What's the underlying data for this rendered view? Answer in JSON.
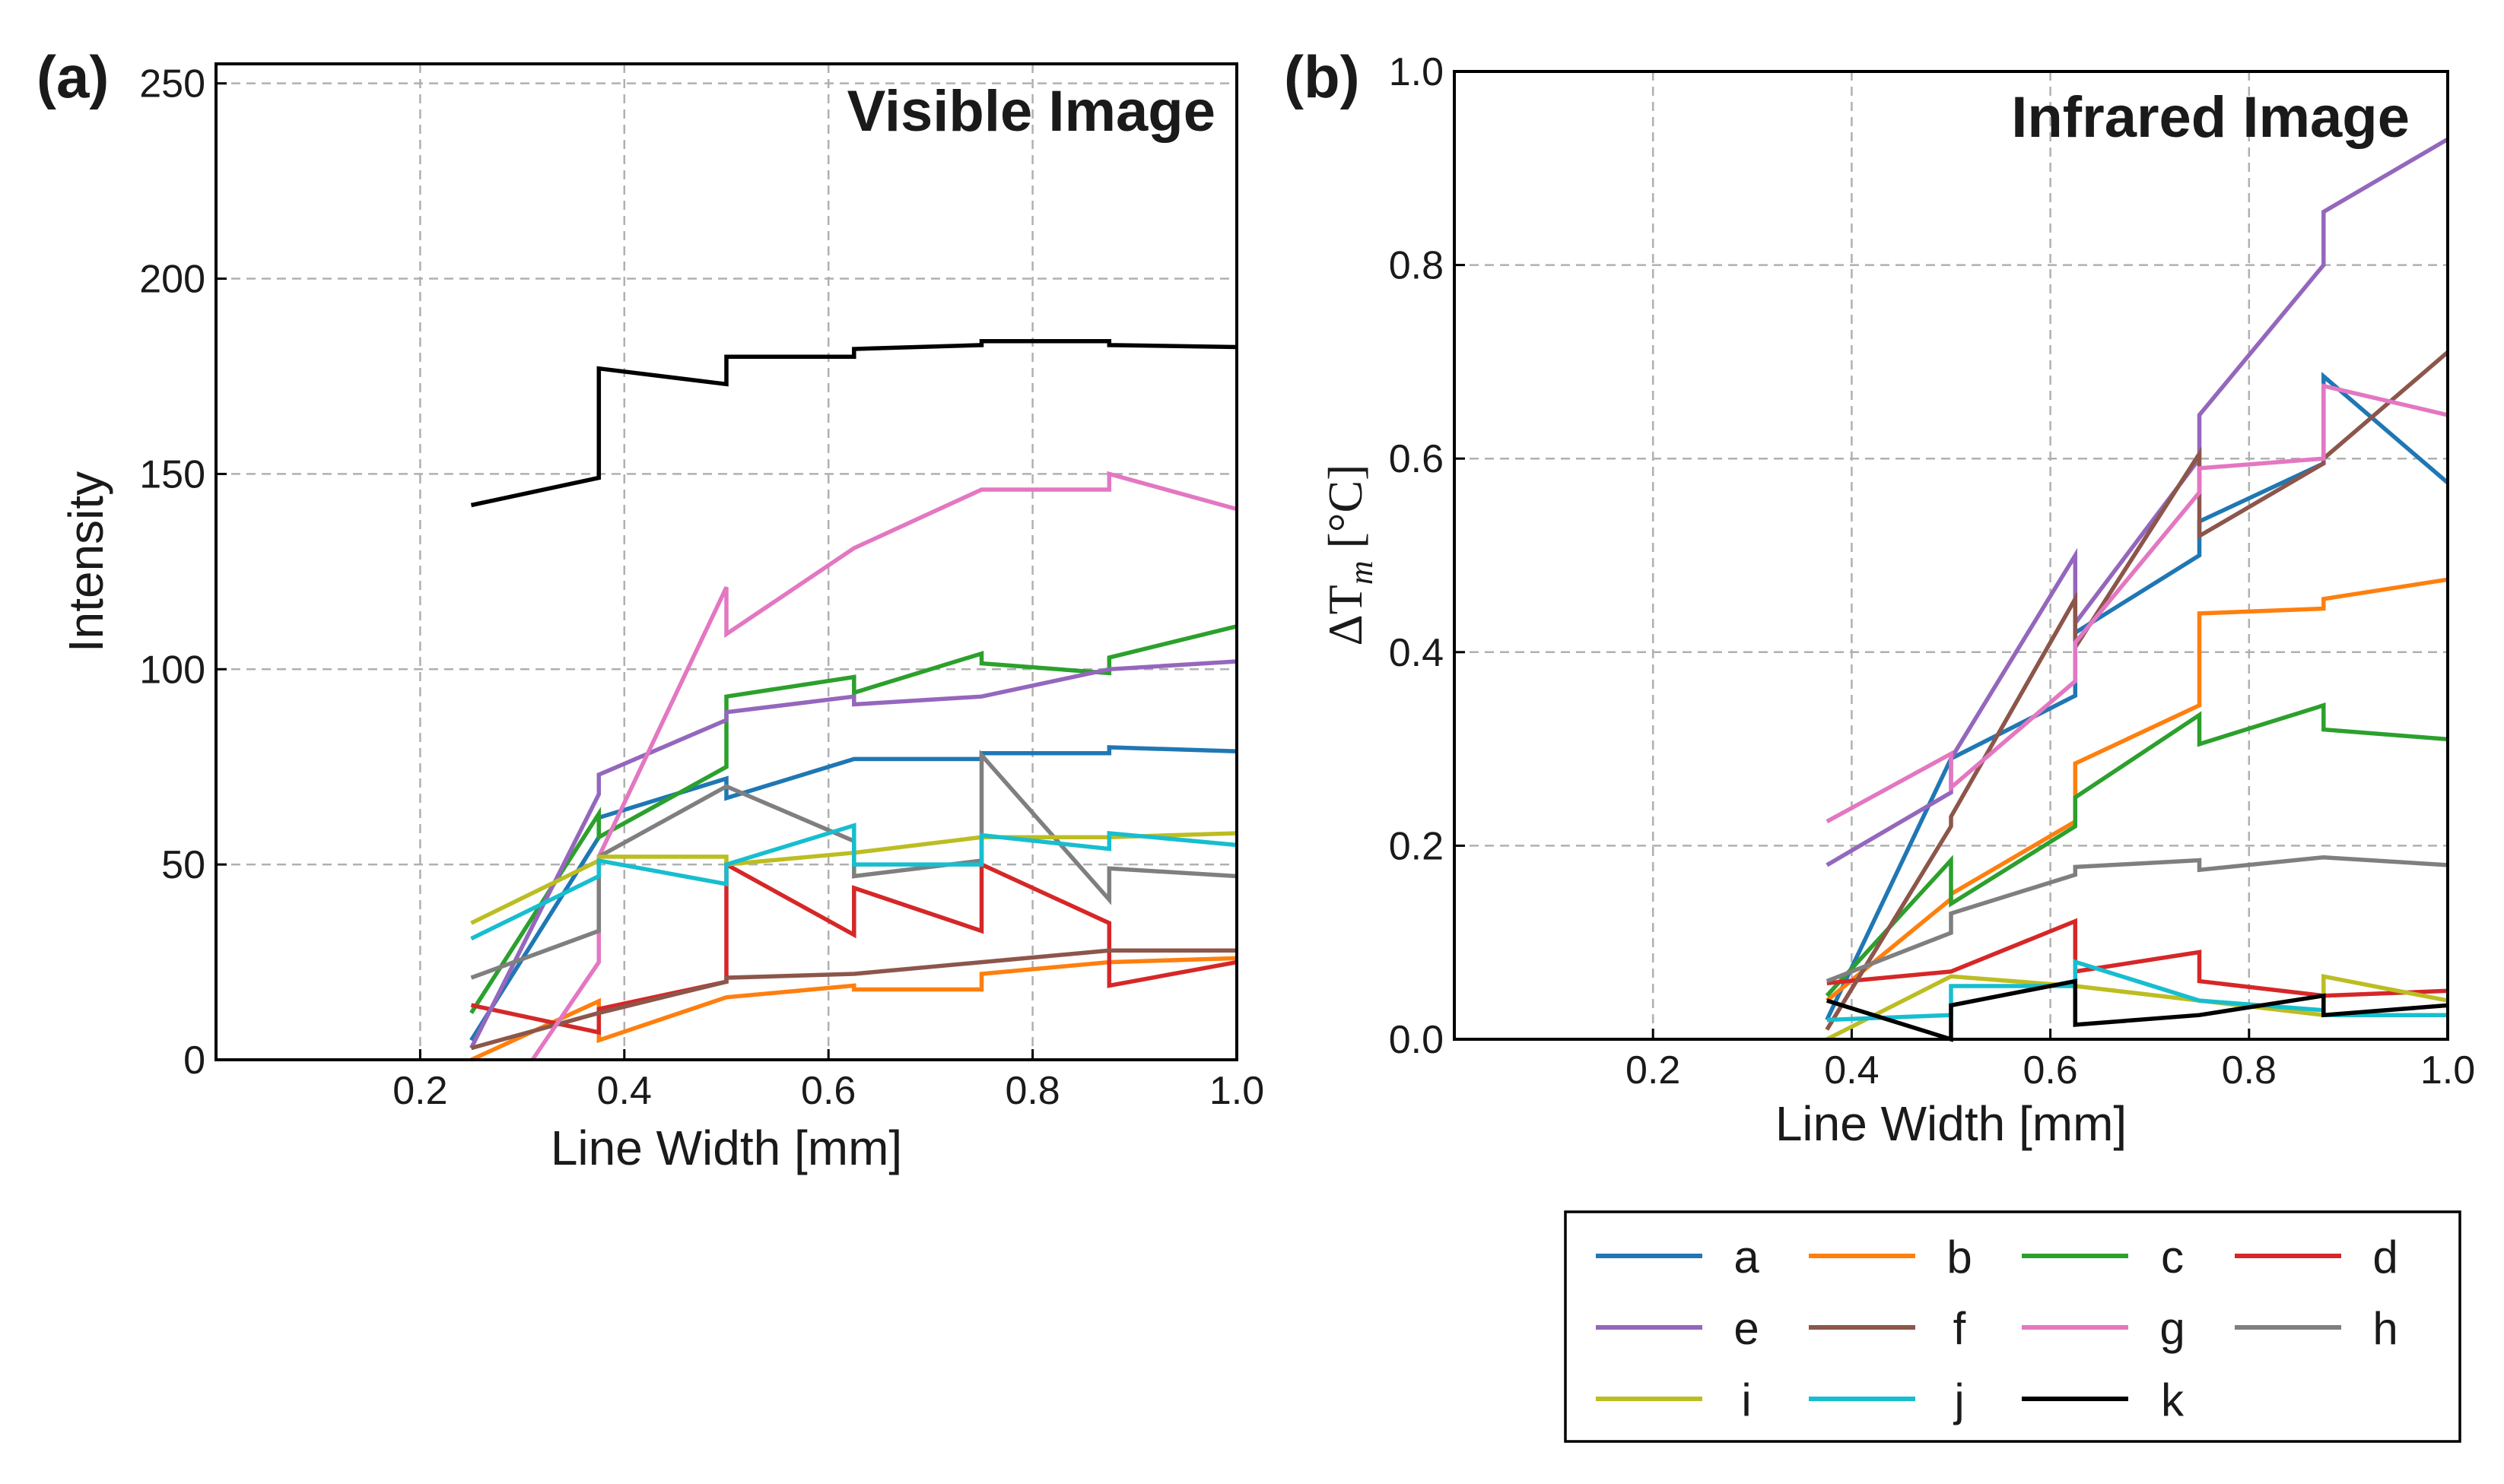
{
  "legend": [
    "a",
    "b",
    "c",
    "d",
    "e",
    "f",
    "g",
    "h",
    "i",
    "j",
    "k"
  ],
  "chart_data": [
    {
      "type": "line",
      "panel_label": "(a)",
      "title": "Visible Image",
      "xlabel": "Line Width [mm]",
      "ylabel": "Intensity",
      "xlim": [
        0.0,
        1.0
      ],
      "ylim": [
        0,
        255
      ],
      "xticks": [
        0.2,
        0.4,
        0.6,
        0.8,
        1.0
      ],
      "xtick_labels": [
        "0.2",
        "0.4",
        "0.6",
        "0.8",
        "1.0"
      ],
      "yticks": [
        0,
        50,
        100,
        150,
        200,
        250
      ],
      "ytick_labels": [
        "0",
        "50",
        "100",
        "150",
        "200",
        "250"
      ],
      "grid": true,
      "series": [
        {
          "name": "a",
          "color": "#1f77b4",
          "points": [
            [
              0.25,
              5
            ],
            [
              0.375,
              57
            ],
            [
              0.375,
              62
            ],
            [
              0.5,
              72
            ],
            [
              0.5,
              67
            ],
            [
              0.625,
              77
            ],
            [
              0.75,
              77
            ],
            [
              0.75,
              78.5
            ],
            [
              0.875,
              78.5
            ],
            [
              0.875,
              80
            ],
            [
              1.0,
              79
            ]
          ]
        },
        {
          "name": "b",
          "color": "#ff7f0e",
          "points": [
            [
              0.25,
              0
            ],
            [
              0.375,
              15
            ],
            [
              0.375,
              5
            ],
            [
              0.5,
              16
            ],
            [
              0.625,
              19
            ],
            [
              0.625,
              18
            ],
            [
              0.75,
              18
            ],
            [
              0.75,
              22
            ],
            [
              0.875,
              25
            ],
            [
              1.0,
              26
            ]
          ]
        },
        {
          "name": "c",
          "color": "#2ca02c",
          "points": [
            [
              0.25,
              12
            ],
            [
              0.375,
              63
            ],
            [
              0.375,
              57
            ],
            [
              0.5,
              75
            ],
            [
              0.5,
              93
            ],
            [
              0.625,
              98
            ],
            [
              0.625,
              94
            ],
            [
              0.75,
              104
            ],
            [
              0.75,
              101.5
            ],
            [
              0.875,
              99
            ],
            [
              0.875,
              103
            ],
            [
              1.0,
              111
            ]
          ]
        },
        {
          "name": "d",
          "color": "#d62728",
          "points": [
            [
              0.25,
              14
            ],
            [
              0.375,
              7
            ],
            [
              0.375,
              13
            ],
            [
              0.5,
              20
            ],
            [
              0.5,
              50
            ],
            [
              0.625,
              32
            ],
            [
              0.625,
              44
            ],
            [
              0.75,
              33
            ],
            [
              0.75,
              50
            ],
            [
              0.875,
              35
            ],
            [
              0.875,
              19
            ],
            [
              1.0,
              25
            ]
          ]
        },
        {
          "name": "e",
          "color": "#9467bd",
          "points": [
            [
              0.25,
              3
            ],
            [
              0.375,
              68
            ],
            [
              0.375,
              73
            ],
            [
              0.5,
              87
            ],
            [
              0.5,
              89
            ],
            [
              0.625,
              93
            ],
            [
              0.625,
              91
            ],
            [
              0.75,
              93
            ],
            [
              0.875,
              100
            ],
            [
              1.0,
              102
            ]
          ]
        },
        {
          "name": "f",
          "color": "#8c564b",
          "points": [
            [
              0.25,
              3
            ],
            [
              0.375,
              12
            ],
            [
              0.5,
              20
            ],
            [
              0.5,
              21
            ],
            [
              0.625,
              22
            ],
            [
              0.75,
              25
            ],
            [
              0.75,
              25
            ],
            [
              0.875,
              28
            ],
            [
              1.0,
              28
            ]
          ]
        },
        {
          "name": "g",
          "color": "#e377c2",
          "points": [
            [
              0.31,
              0
            ],
            [
              0.375,
              25
            ],
            [
              0.375,
              52
            ],
            [
              0.5,
              121
            ],
            [
              0.5,
              109
            ],
            [
              0.625,
              131
            ],
            [
              0.75,
              146
            ],
            [
              0.875,
              146
            ],
            [
              0.875,
              150
            ],
            [
              1.0,
              141
            ]
          ]
        },
        {
          "name": "h",
          "color": "#7f7f7f",
          "points": [
            [
              0.25,
              21
            ],
            [
              0.375,
              33
            ],
            [
              0.375,
              52
            ],
            [
              0.5,
              70
            ],
            [
              0.625,
              56
            ],
            [
              0.625,
              47
            ],
            [
              0.75,
              51
            ],
            [
              0.75,
              78
            ],
            [
              0.875,
              41
            ],
            [
              0.875,
              49
            ],
            [
              1.0,
              47
            ]
          ]
        },
        {
          "name": "i",
          "color": "#bcbd22",
          "points": [
            [
              0.25,
              35
            ],
            [
              0.375,
              51
            ],
            [
              0.375,
              52
            ],
            [
              0.5,
              52
            ],
            [
              0.5,
              50
            ],
            [
              0.625,
              53
            ],
            [
              0.75,
              57
            ],
            [
              0.875,
              57
            ],
            [
              1.0,
              58
            ]
          ]
        },
        {
          "name": "j",
          "color": "#17becf",
          "points": [
            [
              0.25,
              31
            ],
            [
              0.375,
              47
            ],
            [
              0.375,
              51
            ],
            [
              0.5,
              45
            ],
            [
              0.5,
              50
            ],
            [
              0.625,
              60
            ],
            [
              0.625,
              50
            ],
            [
              0.75,
              50
            ],
            [
              0.75,
              57.5
            ],
            [
              0.875,
              54
            ],
            [
              0.875,
              58
            ],
            [
              1.0,
              55
            ]
          ]
        },
        {
          "name": "k",
          "color": "#000000",
          "points": [
            [
              0.25,
              142
            ],
            [
              0.375,
              149
            ],
            [
              0.375,
              177
            ],
            [
              0.5,
              173
            ],
            [
              0.5,
              180
            ],
            [
              0.625,
              180
            ],
            [
              0.625,
              182
            ],
            [
              0.75,
              183
            ],
            [
              0.75,
              184
            ],
            [
              0.875,
              184
            ],
            [
              0.875,
              183
            ],
            [
              1.0,
              182.5
            ]
          ]
        }
      ]
    },
    {
      "type": "line",
      "panel_label": "(b)",
      "title": "Infrared Image",
      "xlabel": "Line Width [mm]",
      "ylabel_symbol": "ΔT",
      "ylabel_subscript": "m",
      "ylabel_unit": " [°C]",
      "xlim": [
        0.0,
        1.0
      ],
      "ylim": [
        0.0,
        1.0
      ],
      "xticks": [
        0.2,
        0.4,
        0.6,
        0.8,
        1.0
      ],
      "xtick_labels": [
        "0.2",
        "0.4",
        "0.6",
        "0.8",
        "1.0"
      ],
      "yticks": [
        0.0,
        0.2,
        0.4,
        0.6,
        0.8,
        1.0
      ],
      "ytick_labels": [
        "0.0",
        "0.2",
        "0.4",
        "0.6",
        "0.8",
        "1.0"
      ],
      "grid": true,
      "series": [
        {
          "name": "a",
          "color": "#1f77b4",
          "points": [
            [
              0.375,
              0.02
            ],
            [
              0.5,
              0.29
            ],
            [
              0.5,
              0.29
            ],
            [
              0.625,
              0.355
            ],
            [
              0.625,
              0.42
            ],
            [
              0.75,
              0.5
            ],
            [
              0.75,
              0.535
            ],
            [
              0.875,
              0.595
            ],
            [
              0.875,
              0.685
            ],
            [
              1.0,
              0.575
            ]
          ]
        },
        {
          "name": "b",
          "color": "#ff7f0e",
          "points": [
            [
              0.375,
              0.04
            ],
            [
              0.5,
              0.145
            ],
            [
              0.5,
              0.15
            ],
            [
              0.625,
              0.225
            ],
            [
              0.625,
              0.285
            ],
            [
              0.75,
              0.345
            ],
            [
              0.75,
              0.44
            ],
            [
              0.875,
              0.445
            ],
            [
              0.875,
              0.455
            ],
            [
              1.0,
              0.475
            ]
          ]
        },
        {
          "name": "c",
          "color": "#2ca02c",
          "points": [
            [
              0.375,
              0.045
            ],
            [
              0.5,
              0.185
            ],
            [
              0.5,
              0.14
            ],
            [
              0.625,
              0.22
            ],
            [
              0.625,
              0.25
            ],
            [
              0.75,
              0.335
            ],
            [
              0.75,
              0.305
            ],
            [
              0.875,
              0.345
            ],
            [
              0.875,
              0.32
            ],
            [
              1.0,
              0.31
            ]
          ]
        },
        {
          "name": "d",
          "color": "#d62728",
          "points": [
            [
              0.375,
              0.058
            ],
            [
              0.5,
              0.07
            ],
            [
              0.5,
              0.07
            ],
            [
              0.625,
              0.122
            ],
            [
              0.625,
              0.07
            ],
            [
              0.75,
              0.09
            ],
            [
              0.75,
              0.06
            ],
            [
              0.875,
              0.045
            ],
            [
              1.0,
              0.05
            ]
          ]
        },
        {
          "name": "e",
          "color": "#9467bd",
          "points": [
            [
              0.375,
              0.18
            ],
            [
              0.5,
              0.255
            ],
            [
              0.5,
              0.29
            ],
            [
              0.625,
              0.5
            ],
            [
              0.625,
              0.43
            ],
            [
              0.75,
              0.6
            ],
            [
              0.75,
              0.645
            ],
            [
              0.875,
              0.8
            ],
            [
              0.875,
              0.855
            ],
            [
              1.0,
              0.93
            ]
          ]
        },
        {
          "name": "f",
          "color": "#8c564b",
          "points": [
            [
              0.375,
              0.01
            ],
            [
              0.5,
              0.22
            ],
            [
              0.5,
              0.23
            ],
            [
              0.625,
              0.455
            ],
            [
              0.625,
              0.405
            ],
            [
              0.75,
              0.605
            ],
            [
              0.75,
              0.52
            ],
            [
              0.875,
              0.595
            ],
            [
              0.875,
              0.6
            ],
            [
              1.0,
              0.71
            ]
          ]
        },
        {
          "name": "g",
          "color": "#e377c2",
          "points": [
            [
              0.375,
              0.225
            ],
            [
              0.5,
              0.295
            ],
            [
              0.5,
              0.26
            ],
            [
              0.625,
              0.37
            ],
            [
              0.625,
              0.41
            ],
            [
              0.75,
              0.565
            ],
            [
              0.75,
              0.59
            ],
            [
              0.875,
              0.6
            ],
            [
              0.875,
              0.675
            ],
            [
              1.0,
              0.645
            ]
          ]
        },
        {
          "name": "h",
          "color": "#7f7f7f",
          "points": [
            [
              0.375,
              0.06
            ],
            [
              0.5,
              0.11
            ],
            [
              0.5,
              0.13
            ],
            [
              0.625,
              0.17
            ],
            [
              0.625,
              0.178
            ],
            [
              0.75,
              0.185
            ],
            [
              0.75,
              0.175
            ],
            [
              0.875,
              0.188
            ],
            [
              1.0,
              0.18
            ]
          ]
        },
        {
          "name": "i",
          "color": "#bcbd22",
          "points": [
            [
              0.375,
              0.0
            ],
            [
              0.5,
              0.065
            ],
            [
              0.625,
              0.055
            ],
            [
              0.75,
              0.04
            ],
            [
              0.875,
              0.025
            ],
            [
              0.875,
              0.065
            ],
            [
              1.0,
              0.04
            ]
          ]
        },
        {
          "name": "j",
          "color": "#17becf",
          "points": [
            [
              0.375,
              0.02
            ],
            [
              0.5,
              0.025
            ],
            [
              0.5,
              0.055
            ],
            [
              0.625,
              0.055
            ],
            [
              0.625,
              0.08
            ],
            [
              0.75,
              0.04
            ],
            [
              0.875,
              0.03
            ],
            [
              0.875,
              0.025
            ],
            [
              1.0,
              0.025
            ]
          ]
        },
        {
          "name": "k",
          "color": "#000000",
          "points": [
            [
              0.375,
              0.04
            ],
            [
              0.5,
              0.0
            ],
            [
              0.5,
              0.035
            ],
            [
              0.625,
              0.06
            ],
            [
              0.625,
              0.015
            ],
            [
              0.75,
              0.025
            ],
            [
              0.875,
              0.045
            ],
            [
              0.875,
              0.025
            ],
            [
              1.0,
              0.035
            ]
          ]
        }
      ]
    }
  ]
}
